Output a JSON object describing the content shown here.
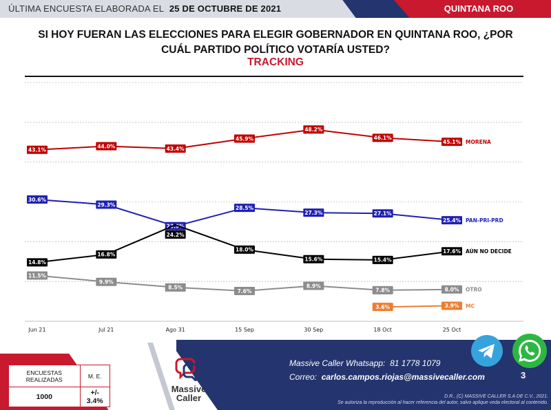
{
  "header": {
    "survey_prefix": "ÚLTIMA ENCUESTA ELABORADA EL",
    "survey_date": "25 DE OCTUBRE DE 2021",
    "region": "QUINTANA ROO"
  },
  "colors": {
    "navy": "#24346e",
    "red": "#c8192e",
    "header_gray": "#d9dde3"
  },
  "chart_data": {
    "type": "line",
    "title": "SI HOY FUERAN LAS ELECCIONES PARA ELEGIR GOBERNADOR EN QUINTANA ROO, ¿POR CUÁL PARTIDO POLÍTICO VOTARÍA USTED?",
    "subtitle": "TRACKING",
    "categories": [
      "Jun 21",
      "Jul 21",
      "Ago 31",
      "15 Sep",
      "30 Sep",
      "18 Oct",
      "25 Oct"
    ],
    "ylim": [
      0,
      60
    ],
    "grid": true,
    "series": [
      {
        "name": "MORENA",
        "color": "#c00000",
        "values": [
          43.1,
          44.0,
          43.4,
          45.9,
          48.2,
          46.1,
          45.1
        ]
      },
      {
        "name": "PAN-PRI-PRD",
        "color": "#1f1fb4",
        "values": [
          30.6,
          29.3,
          23.9,
          28.5,
          27.3,
          27.1,
          25.4
        ]
      },
      {
        "name": "AÚN NO DECIDE",
        "color": "#000000",
        "values": [
          14.8,
          16.8,
          24.2,
          18.0,
          15.6,
          15.4,
          17.6
        ]
      },
      {
        "name": "OTRO",
        "color": "#8c8c8c",
        "values": [
          11.5,
          9.9,
          8.5,
          7.6,
          8.9,
          7.8,
          8.0
        ]
      },
      {
        "name": "MC",
        "color": "#ed7d31",
        "values": [
          null,
          null,
          null,
          null,
          null,
          3.6,
          3.9
        ]
      }
    ],
    "point_labels": [
      [
        "43.1%",
        "44.0%",
        "43.4%",
        "45.9%",
        "48.2%",
        "46.1%",
        "45.1%"
      ],
      [
        "30.6%",
        "29.3%",
        "23.9%",
        "28.5%",
        "27.3%",
        "27.1%",
        "25.4%"
      ],
      [
        "14.8%",
        "16.8%",
        "24.2%",
        "18.0%",
        "15.6%",
        "15.4%",
        "17.6%"
      ],
      [
        "11.5%",
        "9.9%",
        "8.5%",
        "7.6%",
        "8.9%",
        "7.8%",
        "8.0%"
      ],
      [
        null,
        null,
        null,
        null,
        null,
        "3.6%",
        "3.9%"
      ]
    ]
  },
  "survey": {
    "label_surveys": "ENCUESTAS REALIZADAS",
    "label_me": "M. E.",
    "surveys_value": "1000",
    "me_value": "+/- 3.4%"
  },
  "logo": {
    "line1": "Massive",
    "line2": "Caller"
  },
  "contact": {
    "whatsapp_label": "Massive Caller Whatsapp:",
    "whatsapp_number": "81 1778 1079",
    "email_label": "Correo:",
    "email": "carlos.campos.riojas@massivecaller.com"
  },
  "copyright": {
    "line1": "D.R., (C) MASSIVE CALLER S.A DE C.V., 2021.",
    "line2": "Se autoriza la reproducción al hacer referencia del autor, salvo aplique veda electoral al contenido."
  },
  "page_number": "3",
  "icons": [
    "telegram-icon",
    "whatsapp-icon",
    "massive-caller-logo-icon"
  ]
}
